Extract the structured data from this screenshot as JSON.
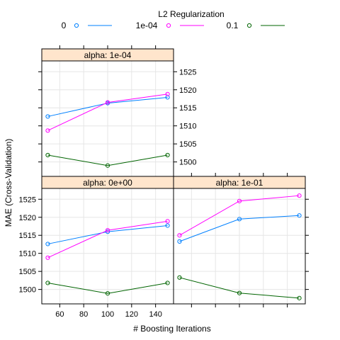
{
  "chart_data": {
    "type": "line",
    "legend": {
      "title": "L2 Regularization",
      "placement": "top",
      "entries": [
        {
          "label": "0",
          "color": "#0080ff"
        },
        {
          "label": "1e-04",
          "color": "#ff00ff"
        },
        {
          "label": "0.1",
          "color": "#006400"
        }
      ]
    },
    "xlabel": "# Boosting Iterations",
    "ylabel": "MAE (Cross-Validation)",
    "xlim": [
      45,
      155
    ],
    "ylim": [
      1496,
      1528
    ],
    "x_ticks": [
      60,
      80,
      100,
      120,
      140
    ],
    "x_tick_labels": [
      "60",
      "80",
      "100",
      "120",
      "140"
    ],
    "y_ticks": [
      1500,
      1505,
      1510,
      1515,
      1520,
      1525
    ],
    "y_tick_labels": [
      "1500",
      "1505",
      "1510",
      "1515",
      "1520",
      "1525"
    ],
    "grid": true,
    "x": [
      50,
      100,
      150
    ],
    "panels": [
      {
        "id": "alpha-1e-01",
        "strip": "alpha: 1e-01",
        "series": [
          {
            "name": "0",
            "values": [
              1513.3,
              1519.5,
              1520.5
            ]
          },
          {
            "name": "1e-04",
            "values": [
              1515.0,
              1524.5,
              1526.0
            ]
          },
          {
            "name": "0.1",
            "values": [
              1503.3,
              1499.0,
              1497.6
            ]
          }
        ]
      },
      {
        "id": "alpha-0e+00",
        "strip": "alpha: 0e+00",
        "series": [
          {
            "name": "0",
            "values": [
              1512.6,
              1516.0,
              1517.7
            ]
          },
          {
            "name": "1e-04",
            "values": [
              1508.8,
              1516.4,
              1518.9
            ]
          },
          {
            "name": "0.1",
            "values": [
              1501.8,
              1498.9,
              1501.8
            ]
          }
        ]
      },
      {
        "id": "alpha-1e-04",
        "strip": "alpha: 1e-04",
        "series": [
          {
            "name": "0",
            "values": [
              1512.6,
              1516.3,
              1517.9
            ]
          },
          {
            "name": "1e-04",
            "values": [
              1508.7,
              1516.5,
              1518.8
            ]
          },
          {
            "name": "0.1",
            "values": [
              1501.9,
              1499.0,
              1501.9
            ]
          }
        ]
      }
    ]
  }
}
